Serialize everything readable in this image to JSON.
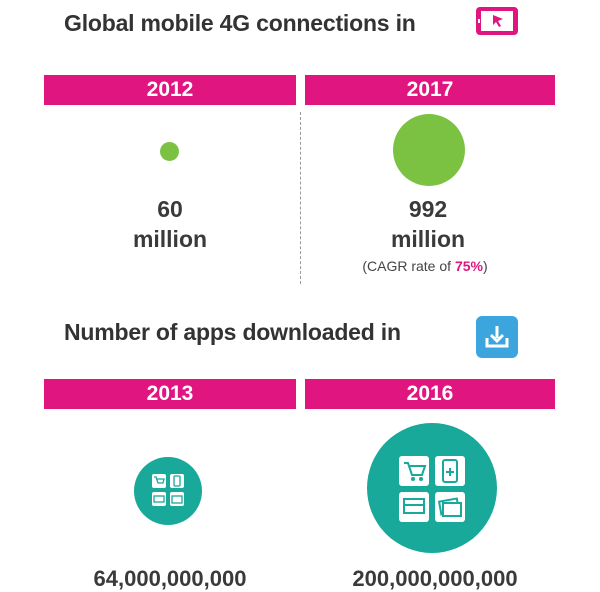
{
  "section1": {
    "title": "Global mobile 4G connections in",
    "icon": "tablet-cursor-icon",
    "left": {
      "year": "2012",
      "value": "60",
      "unit": "million",
      "size": 60
    },
    "right": {
      "year": "2017",
      "value": "992",
      "unit": "million",
      "size": 992,
      "cagr_prefix": "(CAGR rate of ",
      "cagr_value": "75%",
      "cagr_suffix": ")"
    }
  },
  "section2": {
    "title": "Number of apps downloaded in",
    "icon": "download-icon",
    "left": {
      "year": "2013",
      "icon": "apps-grid-icon",
      "value_partial": "64,000,000,000"
    },
    "right": {
      "year": "2016",
      "icon": "apps-grid-icon",
      "value_partial": "200,000,000,000"
    }
  },
  "colors": {
    "band": "#e0157f",
    "green": "#7cc242",
    "teal": "#18a99a",
    "icon_blue": "#3da5de",
    "text": "#3a3a3a"
  }
}
